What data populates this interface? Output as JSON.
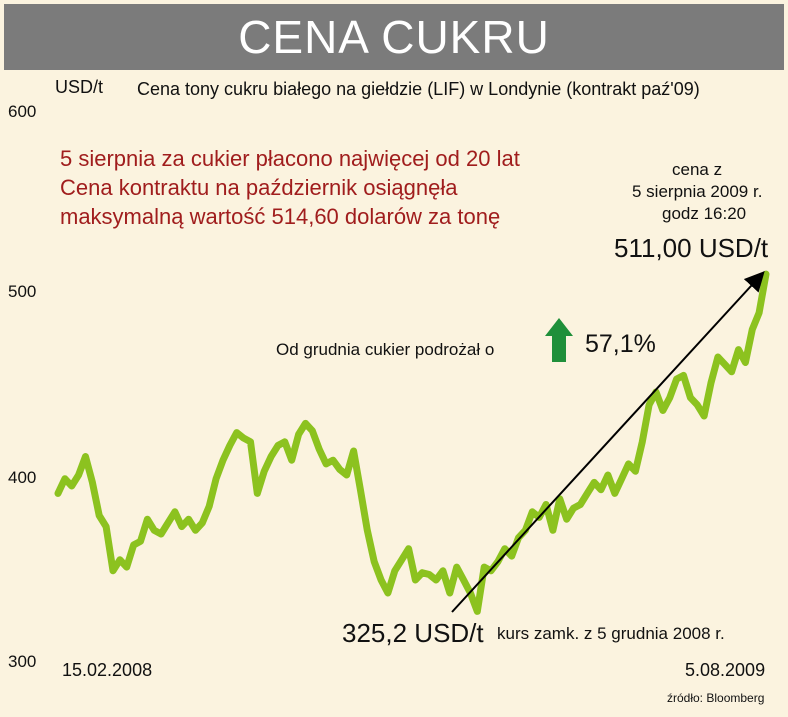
{
  "title": "CENA CUKRU",
  "unit_label": "USD/t",
  "subtitle": "Cena tony cukru białego na giełdzie (LIF) w Londynie (kontrakt paź'09)",
  "note_lines": [
    "5 sierpnia za cukier płacono najwięcej od 20 lat",
    "Cena kontraktu na październik osiągnęła",
    "maksymalną wartość 514,60 dolarów za tonę"
  ],
  "end_note_lines": [
    "cena z",
    "5 sierpnia 2009 r.",
    "godz 16:20"
  ],
  "end_value_label": "511,00 USD/t",
  "growth_text": "Od grudnia cukier podrożał o",
  "growth_value": "57,1%",
  "low_value_label": "325,2 USD/t",
  "low_note": "kurs zamk. z 5 grudnia 2008 r.",
  "start_date": "15.02.2008",
  "end_date": "5.08.2009",
  "source": "źródło: Bloomberg",
  "colors": {
    "line": "#8cc21f",
    "banner": "#7b7b7b",
    "note": "#a01d1d",
    "arrow_up": "#1f8f3a",
    "background": "#fbf3df"
  },
  "icons": {
    "growth": "arrow-up-icon"
  },
  "chart_data": {
    "type": "line",
    "ylim": [
      300,
      600
    ],
    "yticks": [
      300,
      400,
      500,
      600
    ],
    "x_range": [
      "15.02.2008",
      "5.08.2009"
    ],
    "series": [
      {
        "values": [
          392,
          400,
          396,
          402,
          412,
          398,
          380,
          374,
          350,
          356,
          352,
          364,
          366,
          378,
          372,
          370,
          376,
          382,
          374,
          378,
          372,
          376,
          385,
          400,
          410,
          418,
          425,
          422,
          420,
          392,
          404,
          412,
          418,
          420,
          410,
          424,
          430,
          426,
          416,
          408,
          410,
          405,
          402,
          415,
          394,
          372,
          355,
          345,
          338,
          350,
          356,
          362,
          345,
          349,
          348,
          345,
          350,
          338,
          352,
          345,
          338,
          328,
          352,
          350,
          355,
          362,
          358,
          368,
          372,
          382,
          379,
          386,
          372,
          389,
          378,
          384,
          386,
          392,
          398,
          394,
          402,
          392,
          400,
          408,
          404,
          420,
          440,
          447,
          437,
          444,
          454,
          456,
          444,
          440,
          434,
          452,
          466,
          462,
          458,
          470,
          463,
          481,
          490,
          511
        ]
      }
    ],
    "annotations": [
      {
        "label": "325,2 USD/t",
        "value": 325.2,
        "date": "5.12.2008"
      },
      {
        "label": "511,00 USD/t",
        "value": 511.0,
        "date": "5.08.2009"
      }
    ]
  }
}
